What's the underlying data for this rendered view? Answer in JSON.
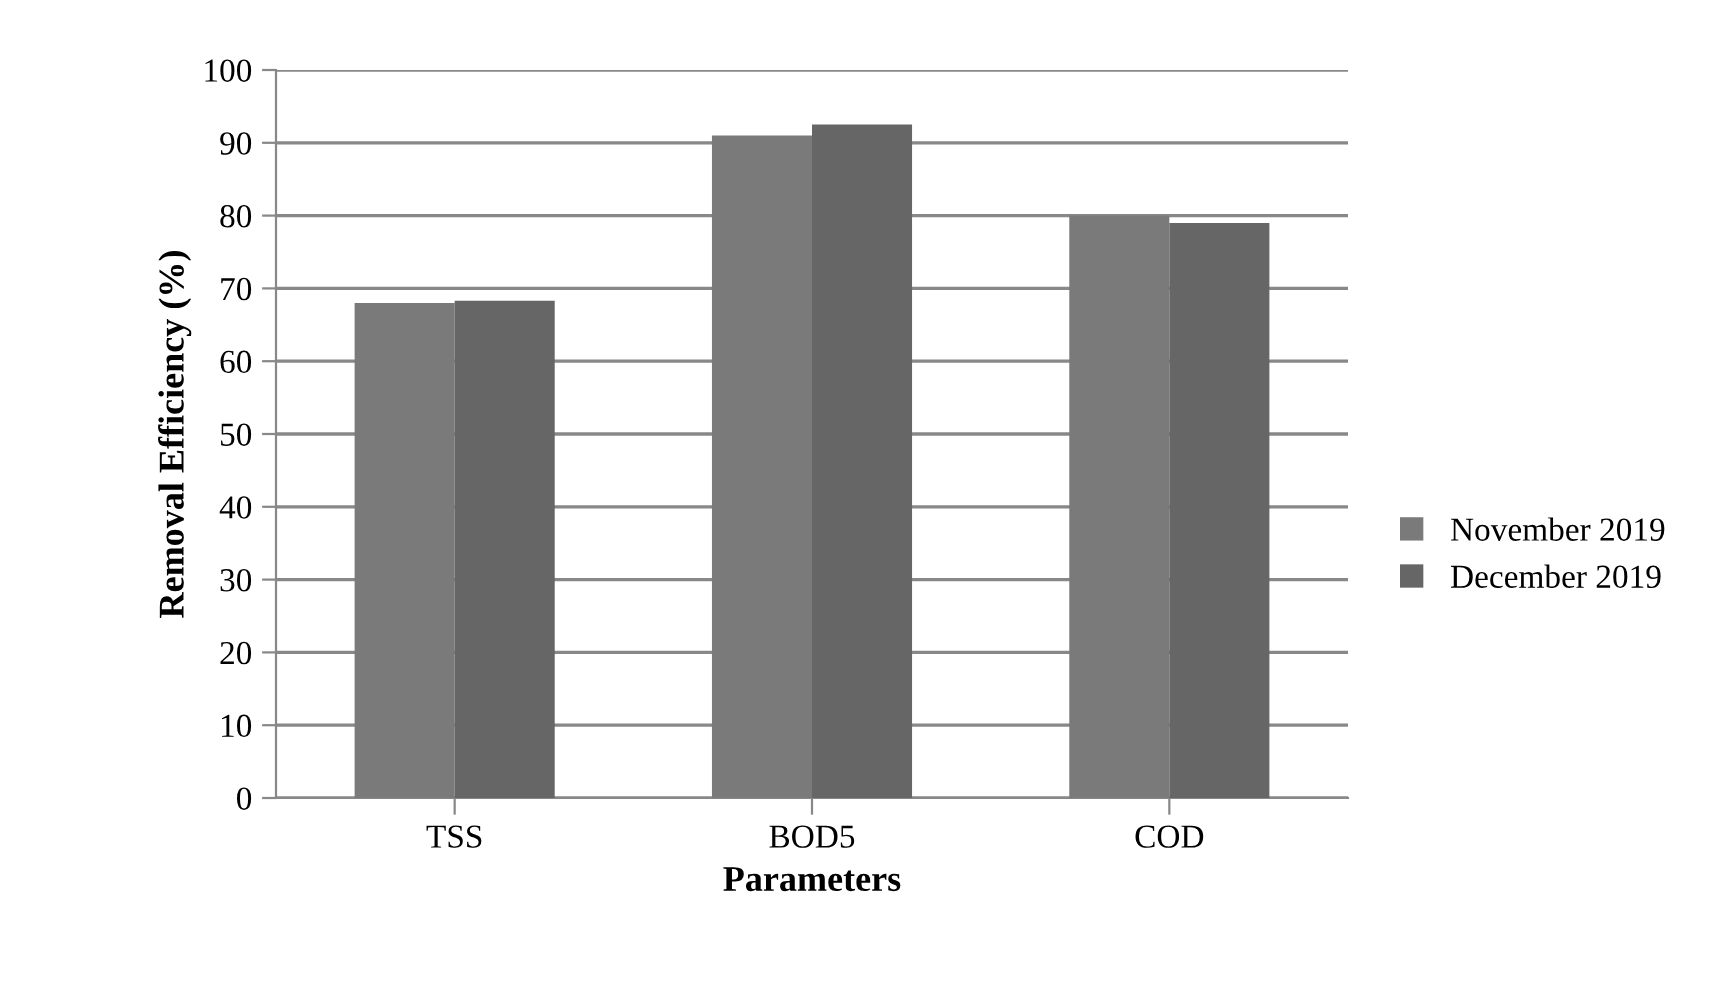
{
  "chart_data": {
    "type": "bar",
    "xlabel": "Parameters",
    "ylabel": "Removal Efficiency (%)",
    "categories": [
      "TSS",
      "BOD5",
      "COD"
    ],
    "series": [
      {
        "name": "November 2019",
        "color": "#7a7a7a",
        "values": [
          68,
          91,
          80
        ]
      },
      {
        "name": "December 2019",
        "color": "#666666",
        "values": [
          68.3,
          92.5,
          79
        ]
      }
    ],
    "ylim": [
      0,
      100
    ],
    "yticks": [
      0,
      10,
      20,
      30,
      40,
      50,
      60,
      70,
      80,
      90,
      100
    ],
    "grid": "y",
    "legend": "right"
  }
}
